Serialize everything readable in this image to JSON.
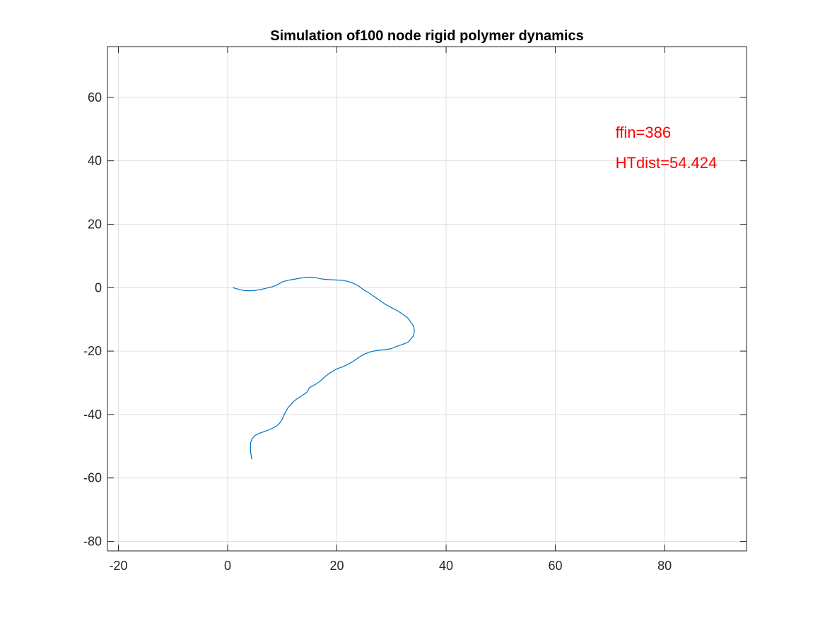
{
  "chart_data": {
    "type": "line",
    "title": "Simulation of100 node rigid polymer dynamics",
    "xlabel": "",
    "ylabel": "",
    "xlim": [
      -22,
      95
    ],
    "ylim": [
      -83,
      76
    ],
    "xticks": [
      -20,
      0,
      20,
      40,
      60,
      80
    ],
    "yticks": [
      -80,
      -60,
      -40,
      -20,
      0,
      20,
      40,
      60
    ],
    "xtick_labels": [
      "-20",
      "0",
      "20",
      "40",
      "60",
      "80"
    ],
    "ytick_labels": [
      "-80",
      "-60",
      "-40",
      "-20",
      "0",
      "20",
      "40",
      "60"
    ],
    "grid": true,
    "series": [
      {
        "color": "#0072bd",
        "x": [
          1.0,
          2.0,
          3.0,
          4.0,
          5.0,
          6.0,
          7.0,
          8.0,
          9.0,
          10.0,
          11.0,
          12.0,
          13.0,
          14.0,
          15.0,
          16.0,
          17.0,
          18.0,
          19.0,
          20.0,
          21.0,
          22.0,
          23.0,
          24.0,
          25.0,
          26.0,
          27.0,
          28.0,
          29.0,
          30.0,
          31.0,
          32.0,
          33.0,
          33.5,
          34.0,
          34.2,
          34.0,
          33.5,
          33.0,
          32.0,
          31.0,
          30.0,
          29.0,
          28.0,
          27.0,
          26.0,
          25.0,
          24.0,
          23.0,
          22.0,
          21.0,
          20.0,
          19.0,
          18.0,
          17.0,
          16.0,
          15.0,
          14.5,
          14.0,
          13.5,
          13.0,
          12.5,
          12.0,
          11.5,
          11.0,
          10.5,
          10.0,
          9.5,
          9.0,
          8.0,
          7.0,
          6.0,
          5.0,
          4.5,
          4.2,
          4.2,
          4.4
        ],
        "y": [
          0.0,
          -0.5,
          -0.9,
          -1.0,
          -0.9,
          -0.6,
          -0.2,
          0.2,
          0.8,
          1.8,
          2.3,
          2.6,
          2.9,
          3.2,
          3.3,
          3.2,
          2.8,
          2.6,
          2.5,
          2.4,
          2.3,
          2.0,
          1.4,
          0.5,
          -0.8,
          -1.8,
          -3.0,
          -4.2,
          -5.4,
          -6.3,
          -7.2,
          -8.3,
          -9.6,
          -10.8,
          -12.0,
          -13.5,
          -15.2,
          -16.3,
          -17.2,
          -17.9,
          -18.5,
          -19.2,
          -19.5,
          -19.7,
          -19.9,
          -20.3,
          -21.0,
          -22.0,
          -23.2,
          -24.2,
          -25.0,
          -25.6,
          -26.6,
          -27.8,
          -29.4,
          -30.6,
          -31.5,
          -33.0,
          -33.6,
          -34.2,
          -34.7,
          -35.3,
          -36.0,
          -37.0,
          -38.0,
          -39.5,
          -41.5,
          -42.8,
          -43.6,
          -44.5,
          -45.2,
          -45.8,
          -46.6,
          -47.6,
          -48.9,
          -51.5,
          -54.0
        ]
      }
    ],
    "annotations": [
      {
        "text": "ffin=386",
        "x": 71,
        "y": 49,
        "color": "#ff0000"
      },
      {
        "text": "HTdist=54.424",
        "x": 71,
        "y": 39.5,
        "color": "#ff0000"
      }
    ]
  }
}
